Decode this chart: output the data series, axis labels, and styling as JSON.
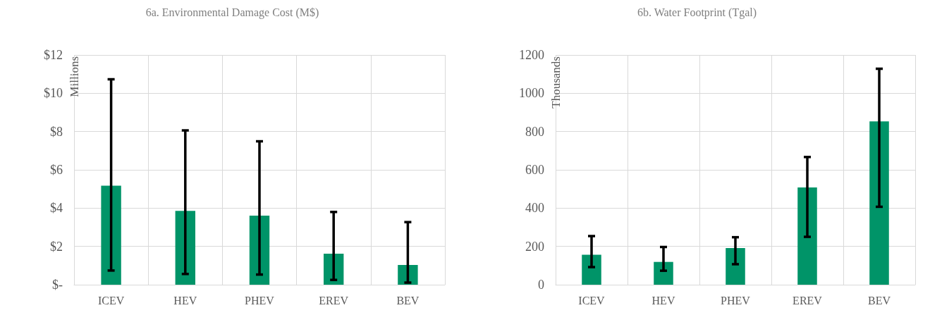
{
  "chart_data": [
    {
      "type": "bar",
      "title": "6a. Environmental Damage Cost (M$)",
      "ylabel": "Millions",
      "categories": [
        "ICEV",
        "HEV",
        "PHEV",
        "EREV",
        "BEV"
      ],
      "series": [
        {
          "color": "#009468",
          "values": [
            5.17,
            3.86,
            3.61,
            1.62,
            1.03
          ],
          "errors": [
            [
              0.74,
              10.73
            ],
            [
              0.56,
              8.06
            ],
            [
              0.53,
              7.49
            ],
            [
              0.25,
              3.8
            ],
            [
              0.11,
              3.27
            ]
          ]
        }
      ],
      "ylim": [
        0,
        12
      ],
      "yticks": [
        {
          "value": 0,
          "label": "$-"
        },
        {
          "value": 2,
          "label": "$2"
        },
        {
          "value": 4,
          "label": "$4"
        },
        {
          "value": 6,
          "label": "$6"
        },
        {
          "value": 8,
          "label": "$8"
        },
        {
          "value": 10,
          "label": "$10"
        },
        {
          "value": 12,
          "label": "$12"
        }
      ],
      "grid": true
    },
    {
      "type": "bar",
      "title": "6b. Water Footprint (Tgal)",
      "ylabel": "Thousands",
      "categories": [
        "ICEV",
        "HEV",
        "PHEV",
        "EREV",
        "BEV"
      ],
      "series": [
        {
          "color": "#009468",
          "values": [
            156,
            119,
            191,
            508,
            853
          ],
          "errors": [
            [
              92,
              254
            ],
            [
              73,
              197
            ],
            [
              107,
              248
            ],
            [
              250,
              667
            ],
            [
              407,
              1128
            ]
          ]
        }
      ],
      "ylim": [
        0,
        1200
      ],
      "yticks": [
        0,
        200,
        400,
        600,
        800,
        1000,
        1200
      ],
      "grid": true
    }
  ]
}
